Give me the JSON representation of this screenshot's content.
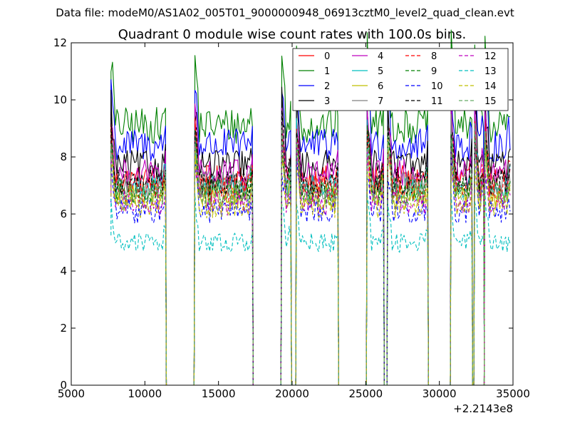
{
  "chart_data": {
    "type": "line",
    "suptitle": "Data file: modeM0/AS1A02_005T01_9000000948_06913cztM0_level2_quad_clean.evt",
    "title": "Quadrant 0 module wise count rates with 100.0s bins.",
    "xlabel": "",
    "ylabel": "",
    "x_offset_label": "+2.2143e8",
    "xlim": [
      5000,
      35000
    ],
    "ylim": [
      0,
      12
    ],
    "xticks": [
      5000,
      10000,
      15000,
      20000,
      25000,
      30000,
      35000
    ],
    "xtick_labels": [
      "5000",
      "10000",
      "15000",
      "20000",
      "25000",
      "30000",
      "35000"
    ],
    "yticks": [
      0,
      2,
      4,
      6,
      8,
      10,
      12
    ],
    "ytick_labels": [
      "0",
      "2",
      "4",
      "6",
      "8",
      "10",
      "12"
    ],
    "grid": false,
    "legend_position": "top-right",
    "legend_columns": 4,
    "bin_seconds": 100,
    "active_segments": [
      [
        7700,
        11400
      ],
      [
        13400,
        17300
      ],
      [
        19300,
        19900
      ],
      [
        20300,
        23100
      ],
      [
        25100,
        26200
      ],
      [
        26500,
        29200
      ],
      [
        30800,
        32200
      ],
      [
        32400,
        33000
      ],
      [
        33100,
        34800
      ]
    ],
    "series": [
      {
        "name": "0",
        "color": "#ff0000",
        "style": "solid",
        "level": 7.2
      },
      {
        "name": "1",
        "color": "#008000",
        "style": "solid",
        "level": 9.1
      },
      {
        "name": "2",
        "color": "#0000ff",
        "style": "solid",
        "level": 8.4
      },
      {
        "name": "3",
        "color": "#000000",
        "style": "solid",
        "level": 7.7
      },
      {
        "name": "4",
        "color": "#bf00bf",
        "style": "solid",
        "level": 7.4
      },
      {
        "name": "5",
        "color": "#00bfbf",
        "style": "solid",
        "level": 6.9
      },
      {
        "name": "6",
        "color": "#bfbf00",
        "style": "solid",
        "level": 6.6
      },
      {
        "name": "7",
        "color": "#808080",
        "style": "solid",
        "level": 7.0
      },
      {
        "name": "8",
        "color": "#ff0000",
        "style": "dashed",
        "level": 6.9
      },
      {
        "name": "9",
        "color": "#008000",
        "style": "dashed",
        "level": 6.8
      },
      {
        "name": "10",
        "color": "#0000ff",
        "style": "dashed",
        "level": 6.1
      },
      {
        "name": "11",
        "color": "#000000",
        "style": "dashed",
        "level": 7.1
      },
      {
        "name": "12",
        "color": "#bf00bf",
        "style": "dashed",
        "level": 6.4
      },
      {
        "name": "13",
        "color": "#00bfbf",
        "style": "dashed",
        "level": 5.0
      },
      {
        "name": "14",
        "color": "#bfbf00",
        "style": "dashed",
        "level": 6.3
      },
      {
        "name": "15",
        "color": "#66aa66",
        "style": "dashed",
        "level": 6.7
      }
    ]
  }
}
